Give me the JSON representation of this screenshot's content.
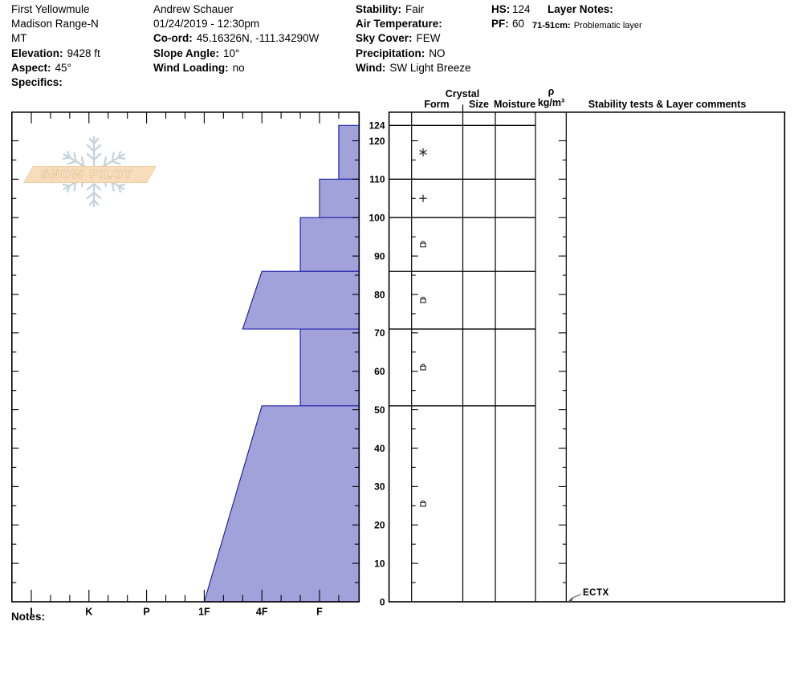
{
  "header": {
    "site": {
      "name": "First Yellowmule",
      "range": "Madison Range-N",
      "state": "MT",
      "elevation_label": "Elevation:",
      "elevation_value": "9428 ft",
      "aspect_label": "Aspect:",
      "aspect_value": "45°",
      "specifics_label": "Specifics:",
      "specifics_value": ""
    },
    "observer": {
      "name": "Andrew Schauer",
      "datetime": "01/24/2019 - 12:30pm",
      "coord_label": "Co-ord:",
      "coord_value": "45.16326N, -111.34290W",
      "slope_angle_label": "Slope Angle:",
      "slope_angle_value": "10°",
      "wind_loading_label": "Wind Loading:",
      "wind_loading_value": "no"
    },
    "conditions": {
      "stability_label": "Stability:",
      "stability_value": "Fair",
      "air_temp_label": "Air Temperature:",
      "air_temp_value": "",
      "sky_cover_label": "Sky Cover:",
      "sky_cover_value": "FEW",
      "precipitation_label": "Precipitation:",
      "precipitation_value": "NO",
      "wind_label": "Wind:",
      "wind_value": "SW Light Breeze"
    },
    "totals": {
      "hs_label": "HS:",
      "hs_value": "124",
      "pf_label": "PF:",
      "pf_value": "60"
    },
    "layer_notes": {
      "title": "Layer Notes:",
      "entry_range": "71-51cm:",
      "entry_text": "Problematic layer"
    }
  },
  "watermark": {
    "text": "SNOW PILOT"
  },
  "table": {
    "crystal_header": "Crystal",
    "form_header": "Form",
    "size_header": "Size",
    "moisture_header": "Moisture",
    "rho_symbol": "ρ",
    "rho_unit": "kg/m³",
    "stability_header": "Stability tests & Layer comments"
  },
  "footer": {
    "notes_label": "Notes:"
  },
  "chart_data": {
    "type": "snow-profile-hardness",
    "depth_unit": "cm",
    "snow_height_cm": 124,
    "pit_foot_cm": 60,
    "depth_labels": [
      124,
      120,
      110,
      100,
      90,
      80,
      70,
      60,
      50,
      40,
      30,
      20,
      10,
      0
    ],
    "depth_minor_tick_cm": 5,
    "depth_major_tick_cm": 10,
    "hardness_categories": [
      "I",
      "K",
      "P",
      "1F",
      "4F",
      "F"
    ],
    "hardness_axis_note": "hardest (I) at left, softest (F) at right",
    "bar_fill": "#a2a2da",
    "bar_stroke": "#2323ad",
    "layers": [
      {
        "top_cm": 124,
        "bottom_cm": 110,
        "hardness_top": "F-",
        "hardness_bottom": "F-",
        "grain_form": "PP stellar",
        "symbol": "star"
      },
      {
        "top_cm": 110,
        "bottom_cm": 100,
        "hardness_top": "F",
        "hardness_bottom": "F",
        "grain_form": "PP",
        "symbol": "plus"
      },
      {
        "top_cm": 100,
        "bottom_cm": 86,
        "hardness_top": "F+",
        "hardness_bottom": "F+",
        "grain_form": "FCxr",
        "symbol": "fcxr"
      },
      {
        "top_cm": 86,
        "bottom_cm": 71,
        "hardness_top": "4F",
        "hardness_bottom": "4F+",
        "grain_form": "FCxr",
        "symbol": "fcxr"
      },
      {
        "top_cm": 71,
        "bottom_cm": 51,
        "hardness_top": "F+",
        "hardness_bottom": "F+",
        "grain_form": "FCxr",
        "symbol": "fcxr"
      },
      {
        "top_cm": 51,
        "bottom_cm": 0,
        "hardness_top": "4F",
        "hardness_bottom": "1F",
        "grain_form": "FCxr",
        "symbol": "fcxr"
      }
    ],
    "stability_tests": [
      {
        "label": "ECTX",
        "depth_cm": 0
      }
    ]
  }
}
